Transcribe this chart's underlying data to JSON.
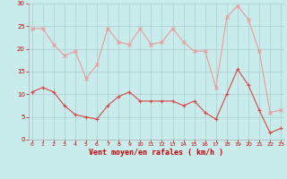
{
  "x": [
    0,
    1,
    2,
    3,
    4,
    5,
    6,
    7,
    8,
    9,
    10,
    11,
    12,
    13,
    14,
    15,
    16,
    17,
    18,
    19,
    20,
    21,
    22,
    23
  ],
  "wind_avg": [
    10.5,
    11.5,
    10.5,
    7.5,
    5.5,
    5.0,
    4.5,
    7.5,
    9.5,
    10.5,
    8.5,
    8.5,
    8.5,
    8.5,
    7.5,
    8.5,
    6.0,
    4.5,
    10.0,
    15.5,
    12.0,
    6.5,
    1.5,
    2.5
  ],
  "wind_gust": [
    24.5,
    24.5,
    21.0,
    18.5,
    19.5,
    13.5,
    16.5,
    24.5,
    21.5,
    21.0,
    24.5,
    21.0,
    21.5,
    24.5,
    21.5,
    19.5,
    19.5,
    11.5,
    27.0,
    29.5,
    26.5,
    19.5,
    6.0,
    6.5
  ],
  "color_avg": "#dd4444",
  "color_gust": "#ee9999",
  "bg_color": "#c8ecec",
  "grid_color": "#aacccc",
  "xlabel": "Vent moyen/en rafales ( km/h )",
  "xlabel_color": "#cc0000",
  "tick_color": "#cc0000",
  "ylim": [
    0,
    30
  ],
  "yticks": [
    0,
    5,
    10,
    15,
    20,
    25,
    30
  ],
  "xticks": [
    0,
    1,
    2,
    3,
    4,
    5,
    6,
    7,
    8,
    9,
    10,
    11,
    12,
    13,
    14,
    15,
    16,
    17,
    18,
    19,
    20,
    21,
    22,
    23
  ]
}
